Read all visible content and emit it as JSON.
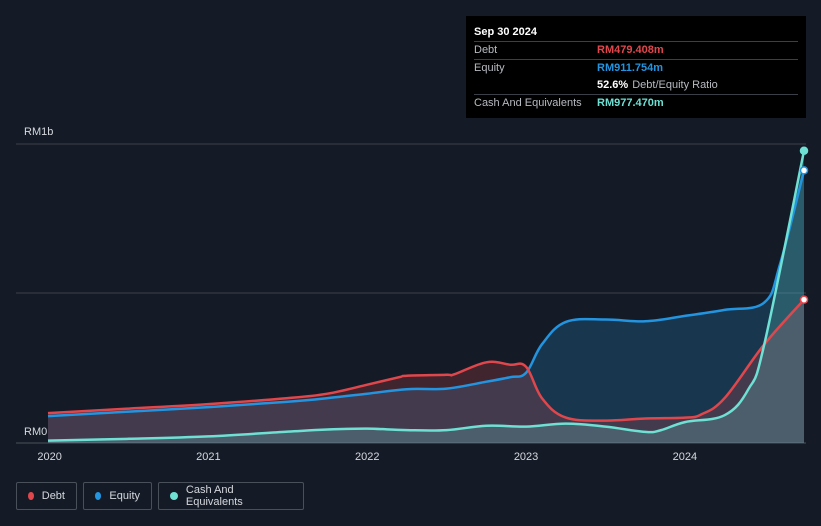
{
  "colors": {
    "background": "#151b26",
    "debt": "#e0474c",
    "equity": "#2394df",
    "cash": "#6ee0d4",
    "grid": "#3a3f48"
  },
  "tooltip": {
    "date": "Sep 30 2024",
    "debt_label": "Debt",
    "debt_value": "RM479.408m",
    "equity_label": "Equity",
    "equity_value": "RM911.754m",
    "ratio_value": "52.6%",
    "ratio_label": "Debt/Equity Ratio",
    "cash_label": "Cash And Equivalents",
    "cash_value": "RM977.470m"
  },
  "legend": {
    "debt": "Debt",
    "equity": "Equity",
    "cash": "Cash And Equivalents"
  },
  "chart_data": {
    "type": "area",
    "y_axis": {
      "top_label": "RM1b",
      "bottom_label": "RM0",
      "ylim": [
        0,
        1000
      ],
      "unit": "RM m"
    },
    "x_ticks": [
      "2020",
      "2021",
      "2022",
      "2023",
      "2024"
    ],
    "xlim": [
      2019.99,
      2024.75
    ],
    "series": [
      {
        "name": "Debt",
        "x": [
          2019.99,
          2020.5,
          2021.0,
          2021.5,
          2021.75,
          2022.0,
          2022.2,
          2022.25,
          2022.5,
          2022.55,
          2022.75,
          2022.9,
          2023.0,
          2023.1,
          2023.25,
          2023.5,
          2023.75,
          2024.0,
          2024.1,
          2024.25,
          2024.5,
          2024.75
        ],
        "y": [
          100,
          115,
          130,
          150,
          165,
          195,
          220,
          225,
          228,
          230,
          270,
          262,
          255,
          150,
          85,
          75,
          82,
          85,
          95,
          150,
          330,
          479.408
        ]
      },
      {
        "name": "Equity",
        "x": [
          2019.99,
          2020.5,
          2021.0,
          2021.5,
          2021.75,
          2022.0,
          2022.25,
          2022.5,
          2022.75,
          2022.9,
          2023.0,
          2023.1,
          2023.25,
          2023.5,
          2023.75,
          2024.0,
          2024.25,
          2024.5,
          2024.6,
          2024.75
        ],
        "y": [
          90,
          105,
          120,
          138,
          150,
          165,
          180,
          182,
          205,
          220,
          235,
          330,
          405,
          413,
          407,
          425,
          445,
          470,
          600,
          911.754
        ]
      },
      {
        "name": "Cash And Equivalents",
        "x": [
          2019.99,
          2020.5,
          2021.0,
          2021.5,
          2021.75,
          2022.0,
          2022.25,
          2022.5,
          2022.75,
          2023.0,
          2023.25,
          2023.5,
          2023.75,
          2023.85,
          2024.0,
          2024.25,
          2024.4,
          2024.5,
          2024.75
        ],
        "y": [
          8,
          14,
          22,
          38,
          45,
          48,
          43,
          43,
          58,
          55,
          65,
          55,
          37,
          43,
          70,
          93,
          180,
          330,
          977.47
        ]
      }
    ]
  }
}
